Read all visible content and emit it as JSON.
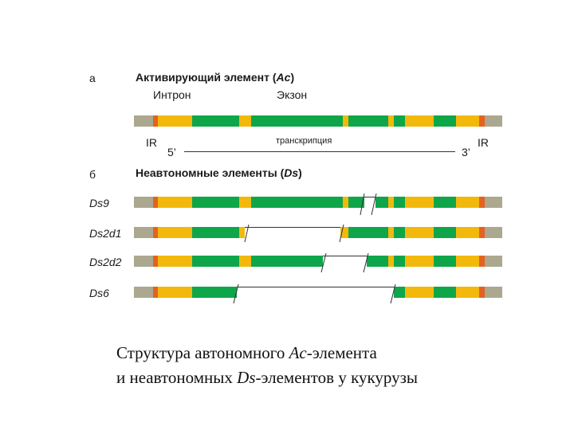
{
  "panel_a": {
    "letter": "а",
    "title_prefix": "Активирующий элемент (",
    "title_italic": "Ac",
    "title_suffix": ")",
    "intron_label": "Интрон",
    "exon_label": "Экзон",
    "ir_left": "IR",
    "ir_right": "IR",
    "five_prime": "5’",
    "three_prime": "3’",
    "transcription_label": "транскрипция"
  },
  "panel_b": {
    "letter": "б",
    "title_prefix": "Неавтономные элементы (",
    "title_italic": "Ds",
    "title_suffix": ")",
    "elements": [
      {
        "name": "Ds9"
      },
      {
        "name": "Ds2d1"
      },
      {
        "name": "Ds2d2"
      },
      {
        "name": "Ds6"
      }
    ]
  },
  "caption": {
    "line1_prefix": "Структура автономного ",
    "line1_italic": "Ac",
    "line1_suffix": "-элемента",
    "line2_prefix": "и неавтономных ",
    "line2_italic": "Ds",
    "line2_suffix": "-элементов у кукурузы"
  },
  "colors": {
    "gray": "#aca78f",
    "orange": "#e4621f",
    "yellow": "#f2b90c",
    "green": "#0fa64a"
  }
}
